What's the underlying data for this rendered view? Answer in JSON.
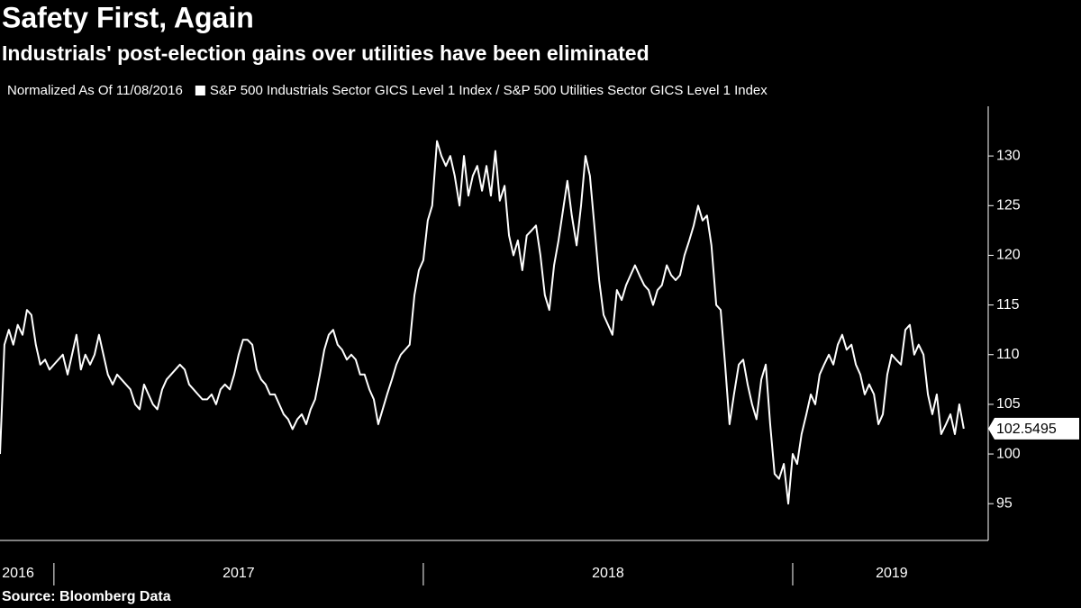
{
  "chart_data": {
    "type": "line",
    "title": "Safety First, Again",
    "subtitle": "Industrials' post-election gains over utilities have been eliminated",
    "annotation": "Normalized As Of 11/08/2016",
    "source": "Source: Bloomberg Data",
    "x": [
      2016.854,
      2016.866,
      2016.878,
      2016.89,
      2016.902,
      2016.915,
      2016.927,
      2016.939,
      2016.951,
      2016.963,
      2016.976,
      2016.988,
      2017,
      2017.012,
      2017.024,
      2017.037,
      2017.049,
      2017.061,
      2017.073,
      2017.085,
      2017.098,
      2017.11,
      2017.122,
      2017.134,
      2017.146,
      2017.159,
      2017.171,
      2017.183,
      2017.195,
      2017.207,
      2017.22,
      2017.232,
      2017.244,
      2017.256,
      2017.268,
      2017.28,
      2017.293,
      2017.305,
      2017.317,
      2017.329,
      2017.341,
      2017.354,
      2017.366,
      2017.378,
      2017.39,
      2017.402,
      2017.415,
      2017.427,
      2017.439,
      2017.451,
      2017.463,
      2017.476,
      2017.488,
      2017.5,
      2017.512,
      2017.524,
      2017.537,
      2017.549,
      2017.561,
      2017.573,
      2017.585,
      2017.598,
      2017.61,
      2017.622,
      2017.634,
      2017.646,
      2017.659,
      2017.671,
      2017.683,
      2017.695,
      2017.707,
      2017.72,
      2017.732,
      2017.744,
      2017.756,
      2017.768,
      2017.78,
      2017.793,
      2017.805,
      2017.817,
      2017.829,
      2017.841,
      2017.854,
      2017.866,
      2017.878,
      2017.89,
      2017.902,
      2017.915,
      2017.927,
      2017.939,
      2017.951,
      2017.963,
      2017.976,
      2017.988,
      2018,
      2018.012,
      2018.024,
      2018.037,
      2018.049,
      2018.061,
      2018.073,
      2018.085,
      2018.098,
      2018.11,
      2018.122,
      2018.134,
      2018.146,
      2018.159,
      2018.171,
      2018.183,
      2018.195,
      2018.207,
      2018.22,
      2018.232,
      2018.244,
      2018.256,
      2018.268,
      2018.28,
      2018.293,
      2018.305,
      2018.317,
      2018.329,
      2018.341,
      2018.354,
      2018.366,
      2018.378,
      2018.39,
      2018.402,
      2018.415,
      2018.427,
      2018.439,
      2018.451,
      2018.463,
      2018.476,
      2018.488,
      2018.5,
      2018.512,
      2018.524,
      2018.537,
      2018.549,
      2018.561,
      2018.573,
      2018.585,
      2018.598,
      2018.61,
      2018.622,
      2018.634,
      2018.646,
      2018.659,
      2018.671,
      2018.683,
      2018.695,
      2018.707,
      2018.72,
      2018.732,
      2018.744,
      2018.756,
      2018.768,
      2018.78,
      2018.793,
      2018.805,
      2018.817,
      2018.829,
      2018.841,
      2018.854,
      2018.866,
      2018.878,
      2018.89,
      2018.902,
      2018.915,
      2018.927,
      2018.939,
      2018.951,
      2018.963,
      2018.976,
      2018.988,
      2019,
      2019.012,
      2019.024,
      2019.037,
      2019.049,
      2019.061,
      2019.073,
      2019.085,
      2019.098,
      2019.11,
      2019.122,
      2019.134,
      2019.146,
      2019.159,
      2019.171,
      2019.183,
      2019.195,
      2019.207,
      2019.22,
      2019.232,
      2019.244,
      2019.256,
      2019.268,
      2019.28,
      2019.293,
      2019.305,
      2019.317,
      2019.329,
      2019.341,
      2019.354,
      2019.366,
      2019.378,
      2019.39,
      2019.402,
      2019.415,
      2019.427,
      2019.439,
      2019.451,
      2019.463
    ],
    "series": [
      {
        "name": "S&P 500 Industrials Sector GICS Level 1 Index / S&P 500 Utilities Sector GICS Level 1 Index",
        "color": "#ffffff",
        "values": [
          100,
          111,
          112.5,
          111,
          113,
          112,
          114.5,
          114,
          111,
          109,
          109.5,
          108.5,
          109,
          109.5,
          110,
          108,
          110,
          112,
          108.5,
          110,
          109,
          110,
          112,
          110,
          108,
          107,
          108,
          107.5,
          107,
          106.5,
          105,
          104.5,
          107,
          106,
          105,
          104.5,
          106.5,
          107.5,
          108,
          108.5,
          109,
          108.5,
          107,
          106.5,
          106,
          105.5,
          105.5,
          106,
          105,
          106.5,
          107,
          106.5,
          108,
          110,
          111.5,
          111.5,
          111,
          108.5,
          107.5,
          107,
          106,
          106,
          105,
          104,
          103.5,
          102.5,
          103.5,
          104,
          103,
          104.5,
          105.5,
          108,
          110.5,
          112,
          112.5,
          111,
          110.5,
          109.5,
          110,
          109.5,
          108,
          108,
          106.5,
          105.5,
          103,
          104.5,
          106,
          107.5,
          109,
          110,
          110.5,
          111,
          116,
          118.5,
          119.5,
          123.5,
          125,
          131.5,
          130,
          129,
          130,
          128,
          125,
          130,
          126,
          128,
          129,
          126.5,
          129,
          126,
          130.5,
          125.5,
          127,
          122,
          120,
          121.5,
          118.5,
          122,
          122.5,
          123,
          120,
          116,
          114.5,
          119,
          121.5,
          124.5,
          127.5,
          124,
          121,
          125,
          130,
          128,
          123,
          117.5,
          114,
          113,
          112,
          116.5,
          115.5,
          117,
          118,
          119,
          118,
          117,
          116.5,
          115,
          116.5,
          117,
          119,
          118,
          117.5,
          118,
          120,
          121.5,
          123,
          125,
          123.5,
          124,
          121,
          115,
          114.5,
          109,
          103,
          106,
          109,
          109.5,
          107,
          105,
          103.5,
          107.5,
          109,
          103,
          98,
          97.5,
          99,
          95,
          100,
          99,
          102,
          104,
          106,
          105,
          108,
          109,
          110,
          109,
          111,
          112,
          110.5,
          111,
          109,
          108,
          106,
          107,
          106,
          103,
          104,
          108,
          110,
          109.5,
          109,
          112.5,
          113,
          110,
          111,
          110,
          106,
          104,
          106,
          102,
          103,
          104,
          102,
          105,
          102.5495
        ]
      }
    ],
    "xlim": [
      2016.854,
      2019.5
    ],
    "xticks": [
      2017,
      2018,
      2019
    ],
    "xtick_labels": [
      {
        "value": 2016.903,
        "label": "2016"
      },
      {
        "value": 2017.5,
        "label": "2017"
      },
      {
        "value": 2018.5,
        "label": "2018"
      },
      {
        "value": 2019.268,
        "label": "2019"
      }
    ],
    "ylim": [
      91.3,
      135
    ],
    "yticks": [
      95,
      100,
      105,
      110,
      115,
      120,
      125,
      130
    ],
    "grid": false
  }
}
